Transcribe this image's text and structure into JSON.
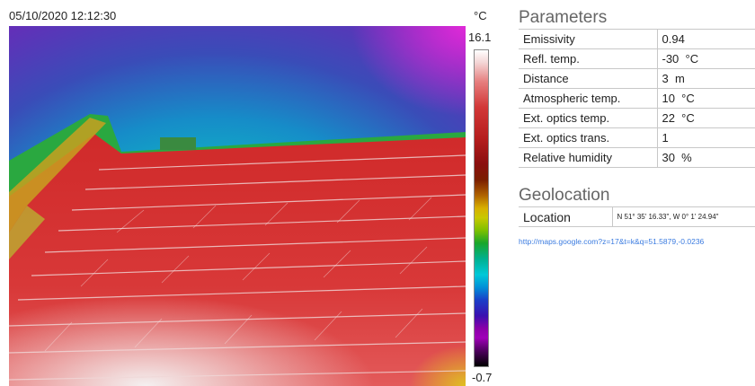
{
  "image": {
    "timestamp": "05/10/2020 12:12:30",
    "unit": "°C",
    "scale_max": "16.1",
    "scale_min": "-0.7"
  },
  "parameters": {
    "title": "Parameters",
    "rows": [
      {
        "label": "Emissivity",
        "value": "0.94"
      },
      {
        "label": "Refl. temp.",
        "value": "-30  °C"
      },
      {
        "label": "Distance",
        "value": "3  m"
      },
      {
        "label": "Atmospheric temp.",
        "value": "10  °C"
      },
      {
        "label": "Ext. optics temp.",
        "value": "22  °C"
      },
      {
        "label": "Ext. optics trans.",
        "value": "1"
      },
      {
        "label": "Relative humidity",
        "value": "30  %"
      }
    ]
  },
  "geolocation": {
    "title": "Geolocation",
    "label": "Location",
    "value": "N 51° 35' 16.33\", W 0° 1' 24.94\"",
    "link": "http://maps.google.com?z=17&t=k&q=51.5879,-0.0236"
  },
  "colors": {
    "roof": "#d42a2a",
    "sky_top": "#1f9fd2",
    "sky_corner": "#b418d0",
    "link": "#3a7be0"
  }
}
